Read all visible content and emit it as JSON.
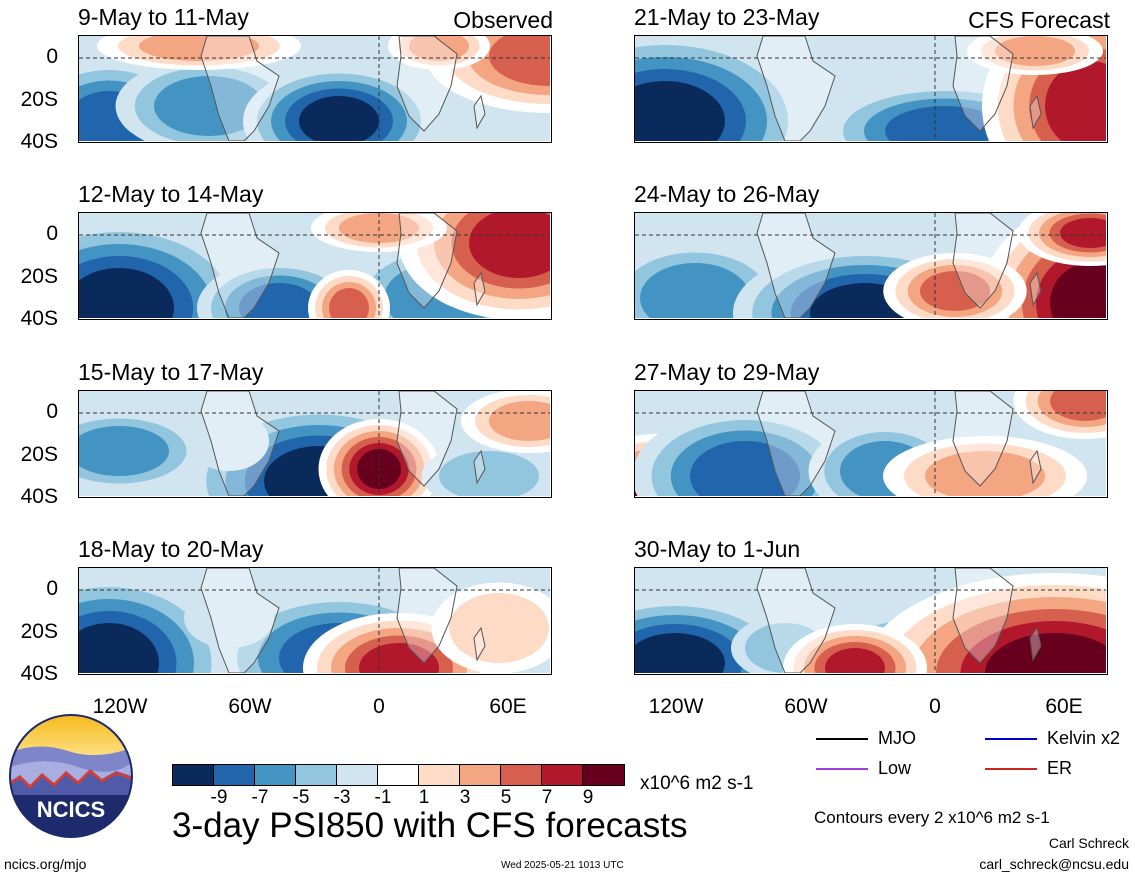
{
  "panels": [
    {
      "title": "9-May to 11-May",
      "tag": "Observed"
    },
    {
      "title": "12-May to 14-May",
      "tag": ""
    },
    {
      "title": "15-May to 17-May",
      "tag": ""
    },
    {
      "title": "18-May to 20-May",
      "tag": ""
    },
    {
      "title": "21-May to 23-May",
      "tag": "CFS Forecast"
    },
    {
      "title": "24-May to 26-May",
      "tag": ""
    },
    {
      "title": "27-May to 29-May",
      "tag": ""
    },
    {
      "title": "30-May to 1-Jun",
      "tag": ""
    }
  ],
  "lat_labels": [
    "0",
    "20S",
    "40S"
  ],
  "lon_labels": [
    "120W",
    "60W",
    "0",
    "60E"
  ],
  "colorbar": {
    "colors": [
      "#0b2a5c",
      "#2166ac",
      "#4393c3",
      "#92c5de",
      "#d1e5f0",
      "#ffffff",
      "#fddbc7",
      "#f4a582",
      "#d6604d",
      "#b2182b",
      "#67001f"
    ],
    "tick_labels": [
      "-9",
      "-7",
      "-5",
      "-3",
      "-1",
      "1",
      "3",
      "5",
      "7",
      "9"
    ],
    "units": "x10^6 m2 s-1"
  },
  "main_title": "3-day PSI850 with CFS forecasts",
  "logo_text": "NCICS",
  "legend": [
    {
      "label": "MJO",
      "color": "#000000"
    },
    {
      "label": "Kelvin x2",
      "color": "#0000cc"
    },
    {
      "label": "Low",
      "color": "#a040e0"
    },
    {
      "label": "ER",
      "color": "#cc2222"
    }
  ],
  "contour_note": "Contours every 2 x10^6 m2 s-1",
  "author": "Carl Schreck",
  "email": "carl_schreck@ncsu.edu",
  "website": "ncics.org/mjo",
  "timestamp": "Wed 2025-05-21 1013 UTC"
}
